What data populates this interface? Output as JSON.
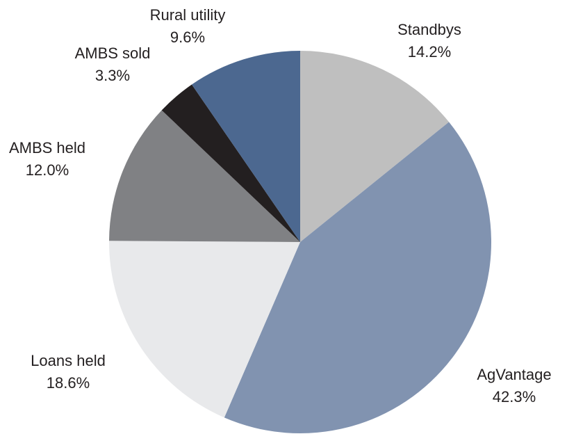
{
  "chart_data": {
    "type": "pie",
    "categories": [
      "Standbys",
      "AgVantage",
      "Loans held",
      "AMBS held",
      "AMBS sold",
      "Rural utility"
    ],
    "values": [
      14.2,
      42.3,
      18.6,
      12.0,
      3.3,
      9.6
    ],
    "value_labels": [
      "14.2%",
      "42.3%",
      "18.6%",
      "12.0%",
      "3.3%",
      "9.6%"
    ],
    "colors": [
      "#bfbfbf",
      "#8193b0",
      "#e8e9eb",
      "#808184",
      "#231f20",
      "#4c6890"
    ]
  }
}
